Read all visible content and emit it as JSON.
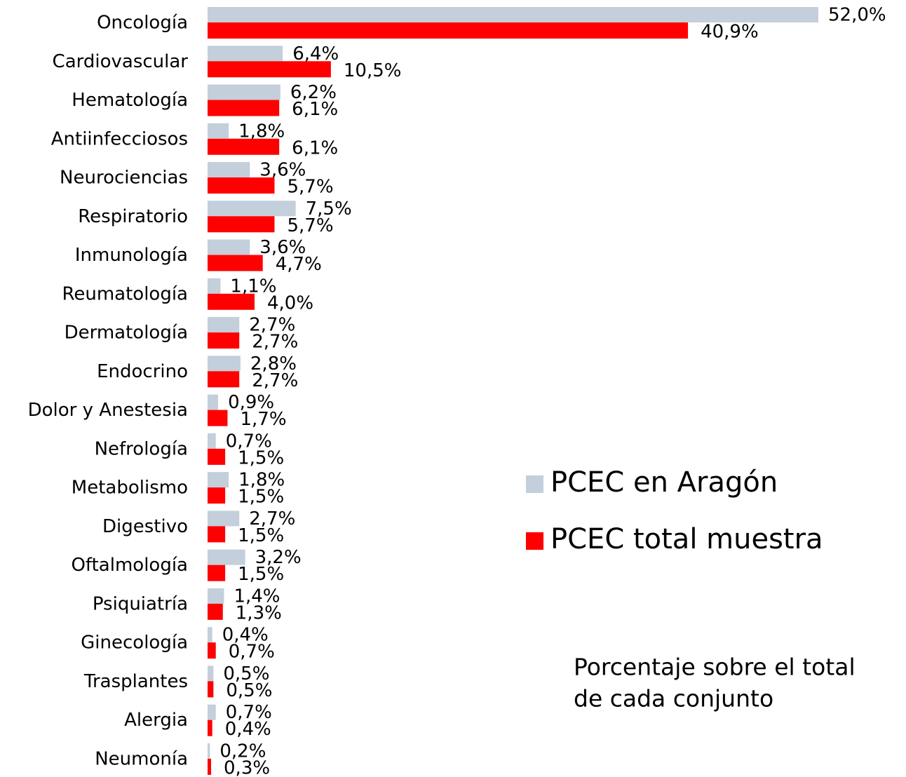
{
  "chart_data": {
    "type": "bar",
    "orientation": "horizontal",
    "categories": [
      "Oncología",
      "Cardiovascular",
      "Hematología",
      "Antiinfecciosos",
      "Neurociencias",
      "Respiratorio",
      "Inmunología",
      "Reumatología",
      "Dermatología",
      "Endocrino",
      "Dolor y Anestesia",
      "Nefrología",
      "Metabolismo",
      "Digestivo",
      "Oftalmología",
      "Psiquiatría",
      "Ginecología",
      "Trasplantes",
      "Alergia",
      "Neumonía"
    ],
    "series": [
      {
        "name": "PCEC en Aragón",
        "color": "#c3cfdb",
        "values": [
          52.0,
          6.4,
          6.2,
          1.8,
          3.6,
          7.5,
          3.6,
          1.1,
          2.7,
          2.8,
          0.9,
          0.7,
          1.8,
          2.7,
          3.2,
          1.4,
          0.4,
          0.5,
          0.7,
          0.2
        ],
        "value_labels": [
          "52,0%",
          "6,4%",
          "6,2%",
          "1,8%",
          "3,6%",
          "7,5%",
          "3,6%",
          "1,1%",
          "2,7%",
          "2,8%",
          "0,9%",
          "0,7%",
          "1,8%",
          "2,7%",
          "3,2%",
          "1,4%",
          "0,4%",
          "0,5%",
          "0,7%",
          "0,2%"
        ]
      },
      {
        "name": "PCEC total muestra",
        "color": "#ff0000",
        "values": [
          40.9,
          10.5,
          6.1,
          6.1,
          5.7,
          5.7,
          4.7,
          4.0,
          2.7,
          2.7,
          1.7,
          1.5,
          1.5,
          1.5,
          1.5,
          1.3,
          0.7,
          0.5,
          0.4,
          0.3
        ],
        "value_labels": [
          "40,9%",
          "10,5%",
          "6,1%",
          "6,1%",
          "5,7%",
          "5,7%",
          "4,7%",
          "4,0%",
          "2,7%",
          "2,7%",
          "1,7%",
          "1,5%",
          "1,5%",
          "1,5%",
          "1,5%",
          "1,3%",
          "0,7%",
          "0,5%",
          "0,4%",
          "0,3%"
        ]
      }
    ],
    "note": [
      "Porcentaje sobre el total",
      "de cada conjunto"
    ]
  }
}
